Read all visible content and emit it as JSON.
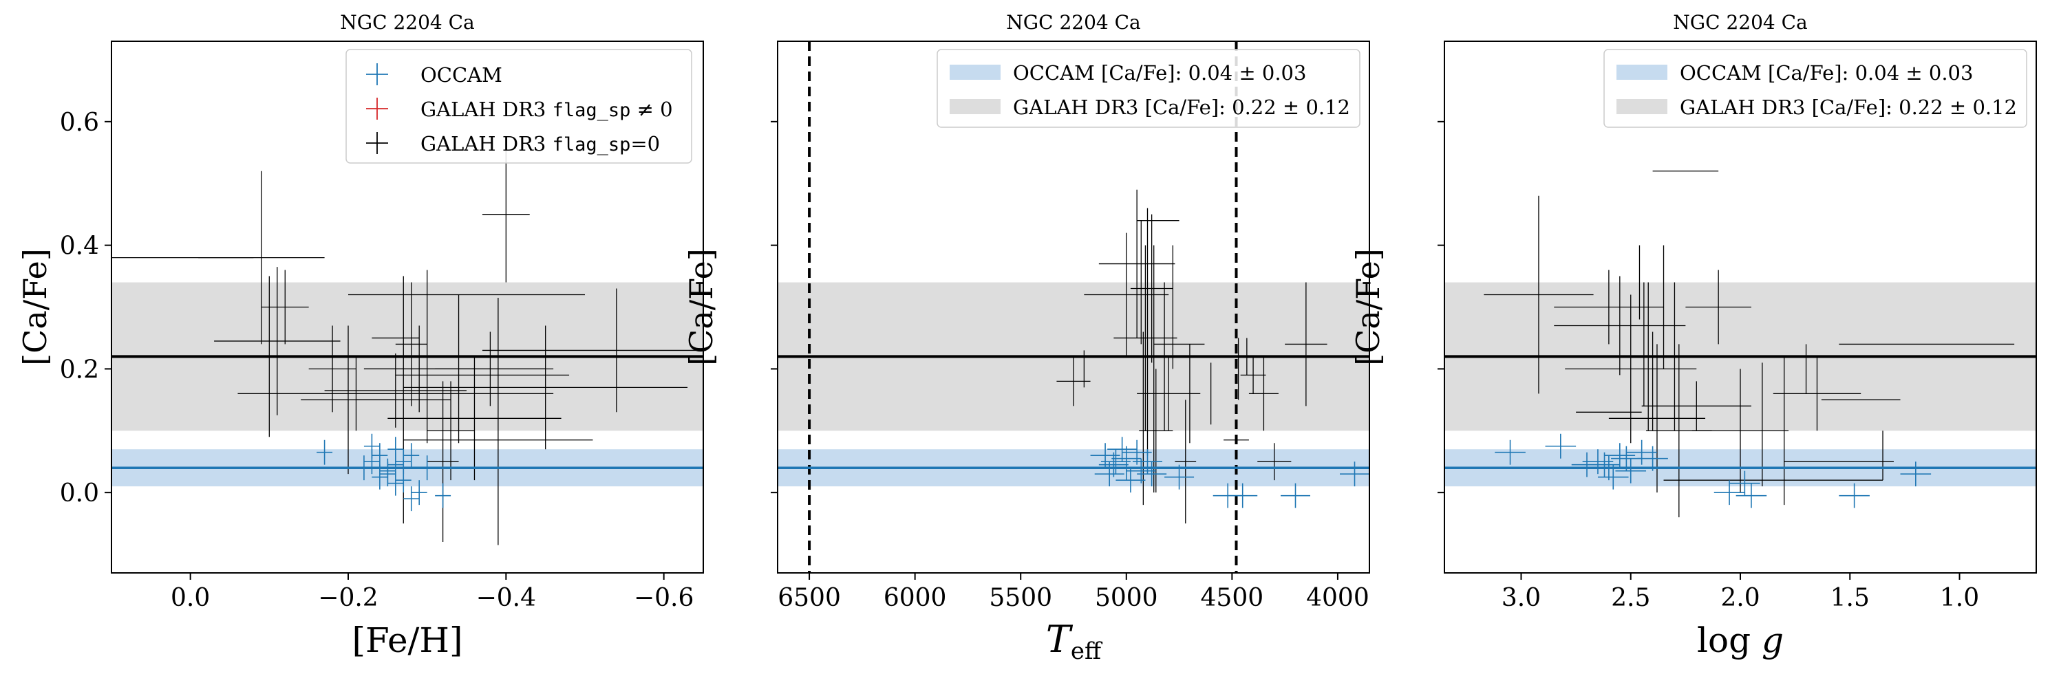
{
  "figure": {
    "panel_title": "NGC 2204 Ca",
    "ylabel": "[Ca/Fe]"
  },
  "colors": {
    "occam": "#1f77b4",
    "occam_band": "#c6dbef",
    "galah_flagged": "#d62728",
    "galah_ok": "#000000",
    "galah_band": "#dddddd"
  },
  "legend": {
    "occam": "OCCAM",
    "galah_flag_prefix": "GALAH DR3 ",
    "galah_flag_code": "flag_sp",
    "galah_flag_ne": " ≠ 0",
    "galah_flag_eq": "=0",
    "occam_mean": "OCCAM [Ca/Fe]: 0.04 ± 0.03",
    "galah_mean": "GALAH DR3 [Ca/Fe]: 0.22 ± 0.12"
  },
  "chart_data": [
    {
      "type": "scatter",
      "title": "NGC 2204 Ca",
      "xlabel": "[Fe/H]",
      "ylabel": "[Ca/Fe]",
      "xlim": [
        0.1,
        -0.65
      ],
      "ylim": [
        -0.13,
        0.73
      ],
      "xticks": [
        0.0,
        -0.2,
        -0.4,
        -0.6
      ],
      "xticklabels": [
        "0.0",
        "−0.2",
        "−0.4",
        "−0.6"
      ],
      "yticks": [
        0.0,
        0.2,
        0.4,
        0.6
      ],
      "yticklabels": [
        "0.0",
        "0.2",
        "0.4",
        "0.6"
      ],
      "show_yticklabels": true,
      "legend": "markers",
      "legend_position": "top-right",
      "occam_mean": 0.04,
      "occam_sigma": 0.03,
      "galah_mean": 0.22,
      "galah_sigma": 0.12,
      "vlines": [],
      "occam": [
        [
          -0.17,
          0.065,
          0.01,
          0.02
        ],
        [
          -0.22,
          0.04,
          0.01,
          0.02
        ],
        [
          -0.23,
          0.05,
          0.01,
          0.02
        ],
        [
          -0.24,
          0.06,
          0.01,
          0.02
        ],
        [
          -0.25,
          0.035,
          0.01,
          0.02
        ],
        [
          -0.26,
          0.07,
          0.01,
          0.02
        ],
        [
          -0.26,
          0.045,
          0.01,
          0.02
        ],
        [
          -0.25,
          0.03,
          0.01,
          0.02
        ],
        [
          -0.27,
          0.05,
          0.01,
          0.02
        ],
        [
          -0.28,
          0.06,
          0.01,
          0.02
        ],
        [
          -0.27,
          0.02,
          0.01,
          0.02
        ],
        [
          -0.29,
          0.0,
          0.01,
          0.02
        ],
        [
          -0.28,
          -0.01,
          0.01,
          0.02
        ],
        [
          -0.32,
          -0.005,
          0.01,
          0.02
        ],
        [
          -0.24,
          0.025,
          0.01,
          0.02
        ],
        [
          -0.3,
          0.04,
          0.01,
          0.02
        ],
        [
          -0.23,
          0.075,
          0.01,
          0.02
        ],
        [
          -0.26,
          0.015,
          0.01,
          0.02
        ]
      ],
      "galah": [
        [
          0.04,
          0.38,
          0.12,
          0.0
        ],
        [
          -0.09,
          0.38,
          0.08,
          0.14
        ],
        [
          -0.1,
          0.22,
          0.08,
          0.13
        ],
        [
          -0.11,
          0.245,
          0.08,
          0.12
        ],
        [
          -0.12,
          0.3,
          0.03,
          0.06
        ],
        [
          -0.18,
          0.2,
          0.03,
          0.07
        ],
        [
          -0.2,
          0.15,
          0.06,
          0.12
        ],
        [
          -0.21,
          0.16,
          0.15,
          0.06
        ],
        [
          -0.26,
          0.165,
          0.09,
          0.06
        ],
        [
          -0.27,
          0.15,
          0.06,
          0.2
        ],
        [
          -0.29,
          0.2,
          0.07,
          0.07
        ],
        [
          -0.26,
          0.25,
          0.03,
          0.0
        ],
        [
          -0.3,
          0.22,
          0.07,
          0.14
        ],
        [
          -0.32,
          0.05,
          0.02,
          0.13
        ],
        [
          -0.33,
          0.1,
          0.03,
          0.08
        ],
        [
          -0.36,
          0.12,
          0.11,
          0.1
        ],
        [
          -0.34,
          0.2,
          0.12,
          0.12
        ],
        [
          -0.37,
          0.19,
          0.11,
          0.0
        ],
        [
          -0.38,
          0.2,
          0.07,
          0.06
        ],
        [
          -0.35,
          0.32,
          0.15,
          0.0
        ],
        [
          -0.4,
          0.45,
          0.03,
          0.11
        ],
        [
          -0.41,
          0.16,
          0.05,
          0.0
        ],
        [
          -0.39,
          0.085,
          0.12,
          0.0
        ],
        [
          -0.45,
          0.17,
          0.18,
          0.1
        ],
        [
          -0.54,
          0.23,
          0.17,
          0.1
        ],
        [
          -0.33,
          0.45,
          0.0,
          0.0
        ],
        [
          -0.28,
          0.24,
          0.02,
          0.1
        ],
        [
          -0.39,
          0.115,
          0.0,
          0.2
        ]
      ]
    },
    {
      "type": "scatter",
      "title": "NGC 2204 Ca",
      "xlabel": "T_eff",
      "ylabel": "[Ca/Fe]",
      "xlim": [
        6650,
        3850
      ],
      "ylim": [
        -0.13,
        0.73
      ],
      "xticks": [
        6500,
        6000,
        5500,
        5000,
        4500,
        4000
      ],
      "xticklabels": [
        "6500",
        "6000",
        "5500",
        "5000",
        "4500",
        "4000"
      ],
      "yticks": [
        0.0,
        0.2,
        0.4,
        0.6
      ],
      "yticklabels": [
        "",
        "",
        "",
        ""
      ],
      "show_yticklabels": false,
      "legend": "bands",
      "legend_position": "top-right",
      "occam_mean": 0.04,
      "occam_sigma": 0.03,
      "galah_mean": 0.22,
      "galah_sigma": 0.12,
      "vlines": [
        6500,
        4480
      ],
      "occam": [
        [
          5100,
          0.06,
          70,
          0.02
        ],
        [
          5050,
          0.05,
          70,
          0.02
        ],
        [
          5000,
          0.04,
          70,
          0.02
        ],
        [
          4950,
          0.065,
          70,
          0.02
        ],
        [
          5080,
          0.03,
          70,
          0.02
        ],
        [
          4900,
          0.05,
          70,
          0.02
        ],
        [
          5020,
          0.07,
          70,
          0.02
        ],
        [
          4980,
          0.02,
          70,
          0.02
        ],
        [
          5060,
          0.045,
          70,
          0.02
        ],
        [
          4930,
          0.035,
          70,
          0.02
        ],
        [
          4750,
          0.025,
          70,
          0.02
        ],
        [
          4520,
          -0.005,
          70,
          0.02
        ],
        [
          4450,
          -0.005,
          70,
          0.02
        ],
        [
          4200,
          -0.005,
          70,
          0.02
        ],
        [
          3920,
          0.03,
          70,
          0.02
        ],
        [
          5000,
          0.055,
          70,
          0.02
        ],
        [
          4880,
          0.03,
          70,
          0.02
        ]
      ],
      "galah": [
        [
          5250,
          0.18,
          80,
          0.04
        ],
        [
          5200,
          0.2,
          0,
          0.03
        ],
        [
          5000,
          0.32,
          200,
          0.1
        ],
        [
          4950,
          0.37,
          180,
          0.12
        ],
        [
          4930,
          0.34,
          0,
          0.1
        ],
        [
          4910,
          0.25,
          150,
          0.15
        ],
        [
          4900,
          0.26,
          0,
          0.2
        ],
        [
          4880,
          0.33,
          100,
          0.12
        ],
        [
          4870,
          0.2,
          0,
          0.2
        ],
        [
          4860,
          0.1,
          80,
          0.1
        ],
        [
          4850,
          0.44,
          100,
          0.0
        ],
        [
          4820,
          0.22,
          100,
          0.12
        ],
        [
          4800,
          0.16,
          150,
          0.06
        ],
        [
          4780,
          0.3,
          0,
          0.1
        ],
        [
          4750,
          0.24,
          120,
          0.0
        ],
        [
          4720,
          0.05,
          50,
          0.1
        ],
        [
          4700,
          0.16,
          0,
          0.08
        ],
        [
          4600,
          0.16,
          0,
          0.05
        ],
        [
          4470,
          0.2,
          0,
          0.05
        ],
        [
          4430,
          0.22,
          0,
          0.03
        ],
        [
          4400,
          0.19,
          60,
          0.03
        ],
        [
          4350,
          0.16,
          70,
          0.06
        ],
        [
          4300,
          0.05,
          80,
          0.03
        ],
        [
          4150,
          0.24,
          100,
          0.1
        ],
        [
          4480,
          0.085,
          60,
          0.0
        ],
        [
          4920,
          0.12,
          0,
          0.14
        ]
      ]
    },
    {
      "type": "scatter",
      "title": "NGC 2204 Ca",
      "xlabel": "log g",
      "ylabel": "[Ca/Fe]",
      "xlim": [
        3.35,
        0.65
      ],
      "ylim": [
        -0.13,
        0.73
      ],
      "xticks": [
        3.0,
        2.5,
        2.0,
        1.5,
        1.0
      ],
      "xticklabels": [
        "3.0",
        "2.5",
        "2.0",
        "1.5",
        "1.0"
      ],
      "yticks": [
        0.0,
        0.2,
        0.4,
        0.6
      ],
      "yticklabels": [
        "",
        "",
        "",
        ""
      ],
      "show_yticklabels": false,
      "legend": "bands",
      "legend_position": "top-right",
      "occam_mean": 0.04,
      "occam_sigma": 0.03,
      "galah_mean": 0.22,
      "galah_sigma": 0.12,
      "vlines": [],
      "occam": [
        [
          3.05,
          0.065,
          0.07,
          0.02
        ],
        [
          2.82,
          0.075,
          0.07,
          0.02
        ],
        [
          2.65,
          0.05,
          0.07,
          0.02
        ],
        [
          2.6,
          0.04,
          0.07,
          0.02
        ],
        [
          2.55,
          0.06,
          0.07,
          0.02
        ],
        [
          2.5,
          0.035,
          0.07,
          0.02
        ],
        [
          2.45,
          0.065,
          0.07,
          0.02
        ],
        [
          2.58,
          0.025,
          0.07,
          0.02
        ],
        [
          2.62,
          0.045,
          0.07,
          0.02
        ],
        [
          2.4,
          0.055,
          0.07,
          0.02
        ],
        [
          2.05,
          0.0,
          0.07,
          0.02
        ],
        [
          1.95,
          -0.005,
          0.07,
          0.02
        ],
        [
          1.98,
          0.015,
          0.07,
          0.02
        ],
        [
          1.48,
          -0.005,
          0.07,
          0.02
        ],
        [
          1.2,
          0.03,
          0.07,
          0.02
        ],
        [
          2.52,
          0.055,
          0.07,
          0.02
        ],
        [
          2.7,
          0.045,
          0.07,
          0.02
        ]
      ],
      "galah": [
        [
          2.92,
          0.32,
          0.25,
          0.16
        ],
        [
          2.6,
          0.3,
          0.25,
          0.06
        ],
        [
          2.55,
          0.27,
          0.3,
          0.08
        ],
        [
          2.5,
          0.2,
          0.3,
          0.12
        ],
        [
          2.46,
          0.34,
          0.0,
          0.06
        ],
        [
          2.44,
          0.24,
          0.0,
          0.1
        ],
        [
          2.42,
          0.22,
          0.28,
          0.12
        ],
        [
          2.4,
          0.18,
          0.0,
          0.08
        ],
        [
          2.38,
          0.12,
          0.22,
          0.12
        ],
        [
          2.35,
          0.3,
          0.0,
          0.1
        ],
        [
          2.3,
          0.22,
          0.0,
          0.12
        ],
        [
          2.25,
          0.52,
          0.15,
          0.0
        ],
        [
          2.28,
          0.1,
          0.15,
          0.14
        ],
        [
          2.2,
          0.14,
          0.25,
          0.04
        ],
        [
          2.1,
          0.3,
          0.15,
          0.06
        ],
        [
          2.0,
          0.1,
          0.22,
          0.1
        ],
        [
          1.85,
          0.02,
          0.5,
          0.0
        ],
        [
          1.7,
          0.2,
          0.0,
          0.04
        ],
        [
          1.65,
          0.16,
          0.2,
          0.06
        ],
        [
          1.55,
          0.05,
          0.25,
          0.0
        ],
        [
          1.45,
          0.15,
          0.18,
          0.0
        ],
        [
          1.15,
          0.24,
          0.4,
          0.0
        ],
        [
          1.8,
          0.1,
          0.0,
          0.12
        ],
        [
          2.6,
          0.13,
          0.15,
          0.0
        ],
        [
          1.9,
          0.11,
          0.0,
          0.1
        ],
        [
          1.35,
          0.06,
          0.0,
          0.04
        ]
      ]
    }
  ]
}
